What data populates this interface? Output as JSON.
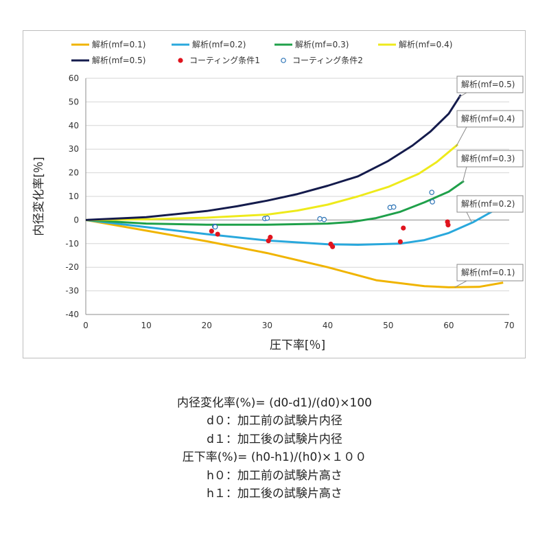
{
  "chart_data": {
    "type": "line",
    "xlabel": "圧下率[％]",
    "ylabel": "内径変化率[％]",
    "xlim": [
      0,
      70
    ],
    "ylim": [
      -40,
      60
    ],
    "xticks": [
      0,
      10,
      20,
      30,
      40,
      50,
      60,
      70
    ],
    "yticks": [
      -40,
      -30,
      -20,
      -10,
      0,
      10,
      20,
      30,
      40,
      50,
      60
    ],
    "grid": "horizontal",
    "legend_position": "top",
    "series": [
      {
        "name": "解析(mf=0.1)",
        "kind": "line",
        "color": "#f0b400",
        "callout": "解析(mf=0.1)",
        "x": [
          0,
          10,
          20,
          30,
          40,
          48,
          56,
          60,
          65,
          69
        ],
        "y": [
          0,
          -4.5,
          -9,
          -14,
          -20,
          -25.5,
          -28,
          -28.5,
          -28.3,
          -26.5
        ]
      },
      {
        "name": "解析(mf=0.2)",
        "kind": "line",
        "color": "#29a8dc",
        "callout": "解析(mf=0.2)",
        "x": [
          0,
          10,
          20,
          30,
          40,
          45,
          52,
          56,
          60,
          64,
          68.5
        ],
        "y": [
          0,
          -3,
          -6,
          -8.7,
          -10.3,
          -10.5,
          -10,
          -8.5,
          -5.5,
          -1,
          5.5
        ]
      },
      {
        "name": "解析(mf=0.3)",
        "kind": "line",
        "color": "#1fa04a",
        "callout": "解析(mf=0.3)",
        "x": [
          0,
          10,
          20,
          30,
          40,
          44,
          48,
          52,
          56,
          60,
          62.5
        ],
        "y": [
          0,
          -1.5,
          -2,
          -2,
          -1.5,
          -0.8,
          0.8,
          3.5,
          7.5,
          12,
          16.5
        ]
      },
      {
        "name": "解析(mf=0.4)",
        "kind": "line",
        "color": "#eeea1b",
        "callout": "解析(mf=0.4)",
        "x": [
          0,
          10,
          20,
          30,
          35,
          40,
          45,
          50,
          55,
          58,
          61.5
        ],
        "y": [
          0,
          0.3,
          1,
          2.3,
          4,
          6.5,
          10,
          14,
          19.5,
          24.5,
          32
        ]
      },
      {
        "name": "解析(mf=0.5)",
        "kind": "line",
        "color": "#141b4c",
        "callout": "解析(mf=0.5)",
        "x": [
          0,
          10,
          20,
          25,
          30,
          35,
          40,
          45,
          50,
          54,
          57,
          60,
          62
        ],
        "y": [
          0,
          1.2,
          3.8,
          5.8,
          8.2,
          11,
          14.5,
          18.5,
          25,
          31.5,
          37.5,
          45,
          53
        ]
      },
      {
        "name": "コーティング条件1",
        "kind": "filled-dot",
        "color": "#e0141e",
        "x": [
          20.8,
          21.8,
          30.2,
          30.5,
          40.5,
          40.8,
          52,
          52.5,
          59.8,
          59.9
        ],
        "y": [
          -4.7,
          -6,
          -8.8,
          -7.3,
          -10.2,
          -11.3,
          -9.2,
          -3.4,
          -0.8,
          -2.1
        ]
      },
      {
        "name": "コーティング条件2",
        "kind": "open-dot",
        "color": "#2c73b6",
        "x": [
          21.3,
          21.4,
          29.6,
          30,
          38.7,
          39.4,
          50.3,
          50.9,
          57.2,
          57.3
        ],
        "y": [
          -2.7,
          -2.9,
          0.6,
          0.8,
          0.5,
          0.2,
          5.3,
          5.5,
          11.7,
          7.7
        ]
      }
    ]
  },
  "formulas": [
    "内径変化率(%)= (d0-d1)/(d0)×100",
    "d０：加工前の試験片内径",
    "d１：加工後の試験片内径",
    "圧下率(%)= (h0-h1)/(h0)×１００",
    "h０：加工前の試験片高さ",
    "h１：加工後の試験片高さ"
  ]
}
